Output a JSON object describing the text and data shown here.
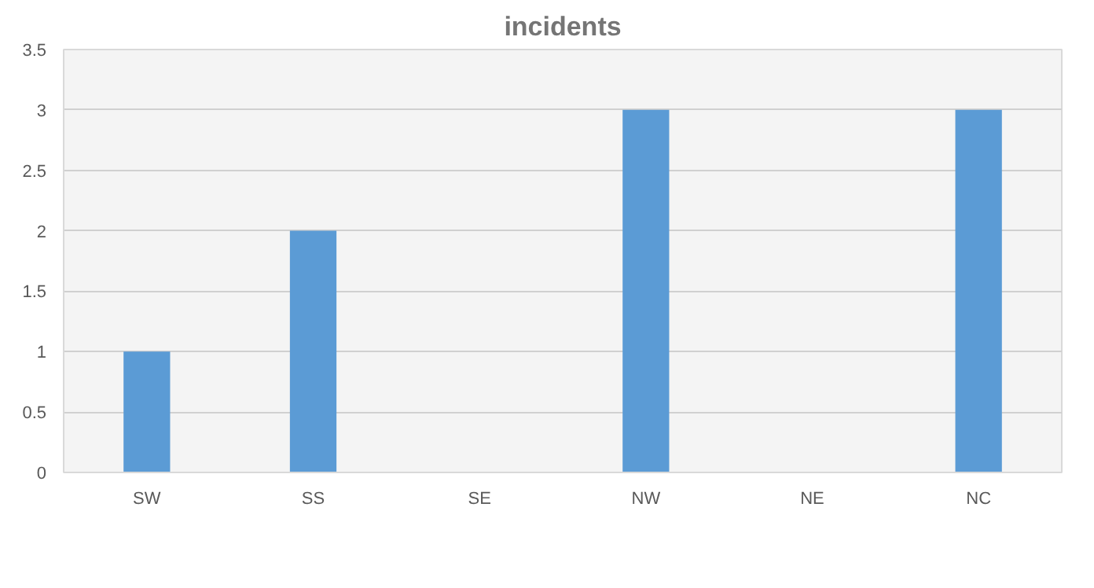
{
  "chart_data": {
    "type": "bar",
    "title": "incidents",
    "categories": [
      "SW",
      "SS",
      "SE",
      "NW",
      "NE",
      "NC"
    ],
    "values": [
      1,
      2,
      0,
      3,
      0,
      3
    ],
    "color": "#5b9bd5",
    "ylim": [
      0,
      3.5
    ],
    "yticks": [
      0,
      0.5,
      1,
      1.5,
      2,
      2.5,
      3,
      3.5
    ],
    "grid": "y"
  }
}
